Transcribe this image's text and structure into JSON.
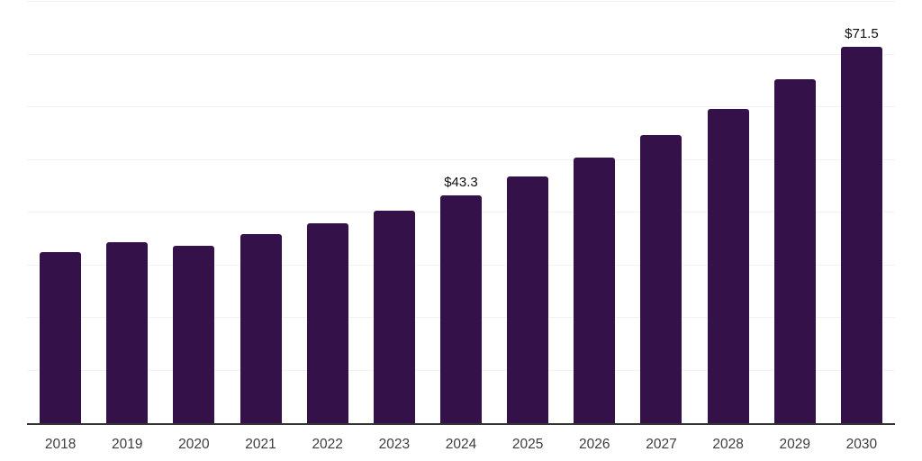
{
  "chart_meta": {
    "background_color": "#ffffff",
    "bar_color": "#341148",
    "grid_color": "#f2f2f2",
    "axis_line_color": "#333333",
    "tick_label_color": "#3d3d3d",
    "data_label_color": "#101010"
  },
  "chart_data": {
    "type": "bar",
    "categories": [
      "2018",
      "2019",
      "2020",
      "2021",
      "2022",
      "2023",
      "2024",
      "2025",
      "2026",
      "2027",
      "2028",
      "2029",
      "2030"
    ],
    "values": [
      32.4,
      34.3,
      33.6,
      35.9,
      37.9,
      40.4,
      43.3,
      46.8,
      50.4,
      54.7,
      59.7,
      65.3,
      71.5
    ],
    "data_labels": {
      "2024": "$43.3",
      "2030": "$71.5"
    },
    "ylim": [
      0,
      80
    ],
    "gridline_step": 10,
    "grid": true,
    "legend_position": "none",
    "xlabel": "",
    "ylabel": ""
  }
}
